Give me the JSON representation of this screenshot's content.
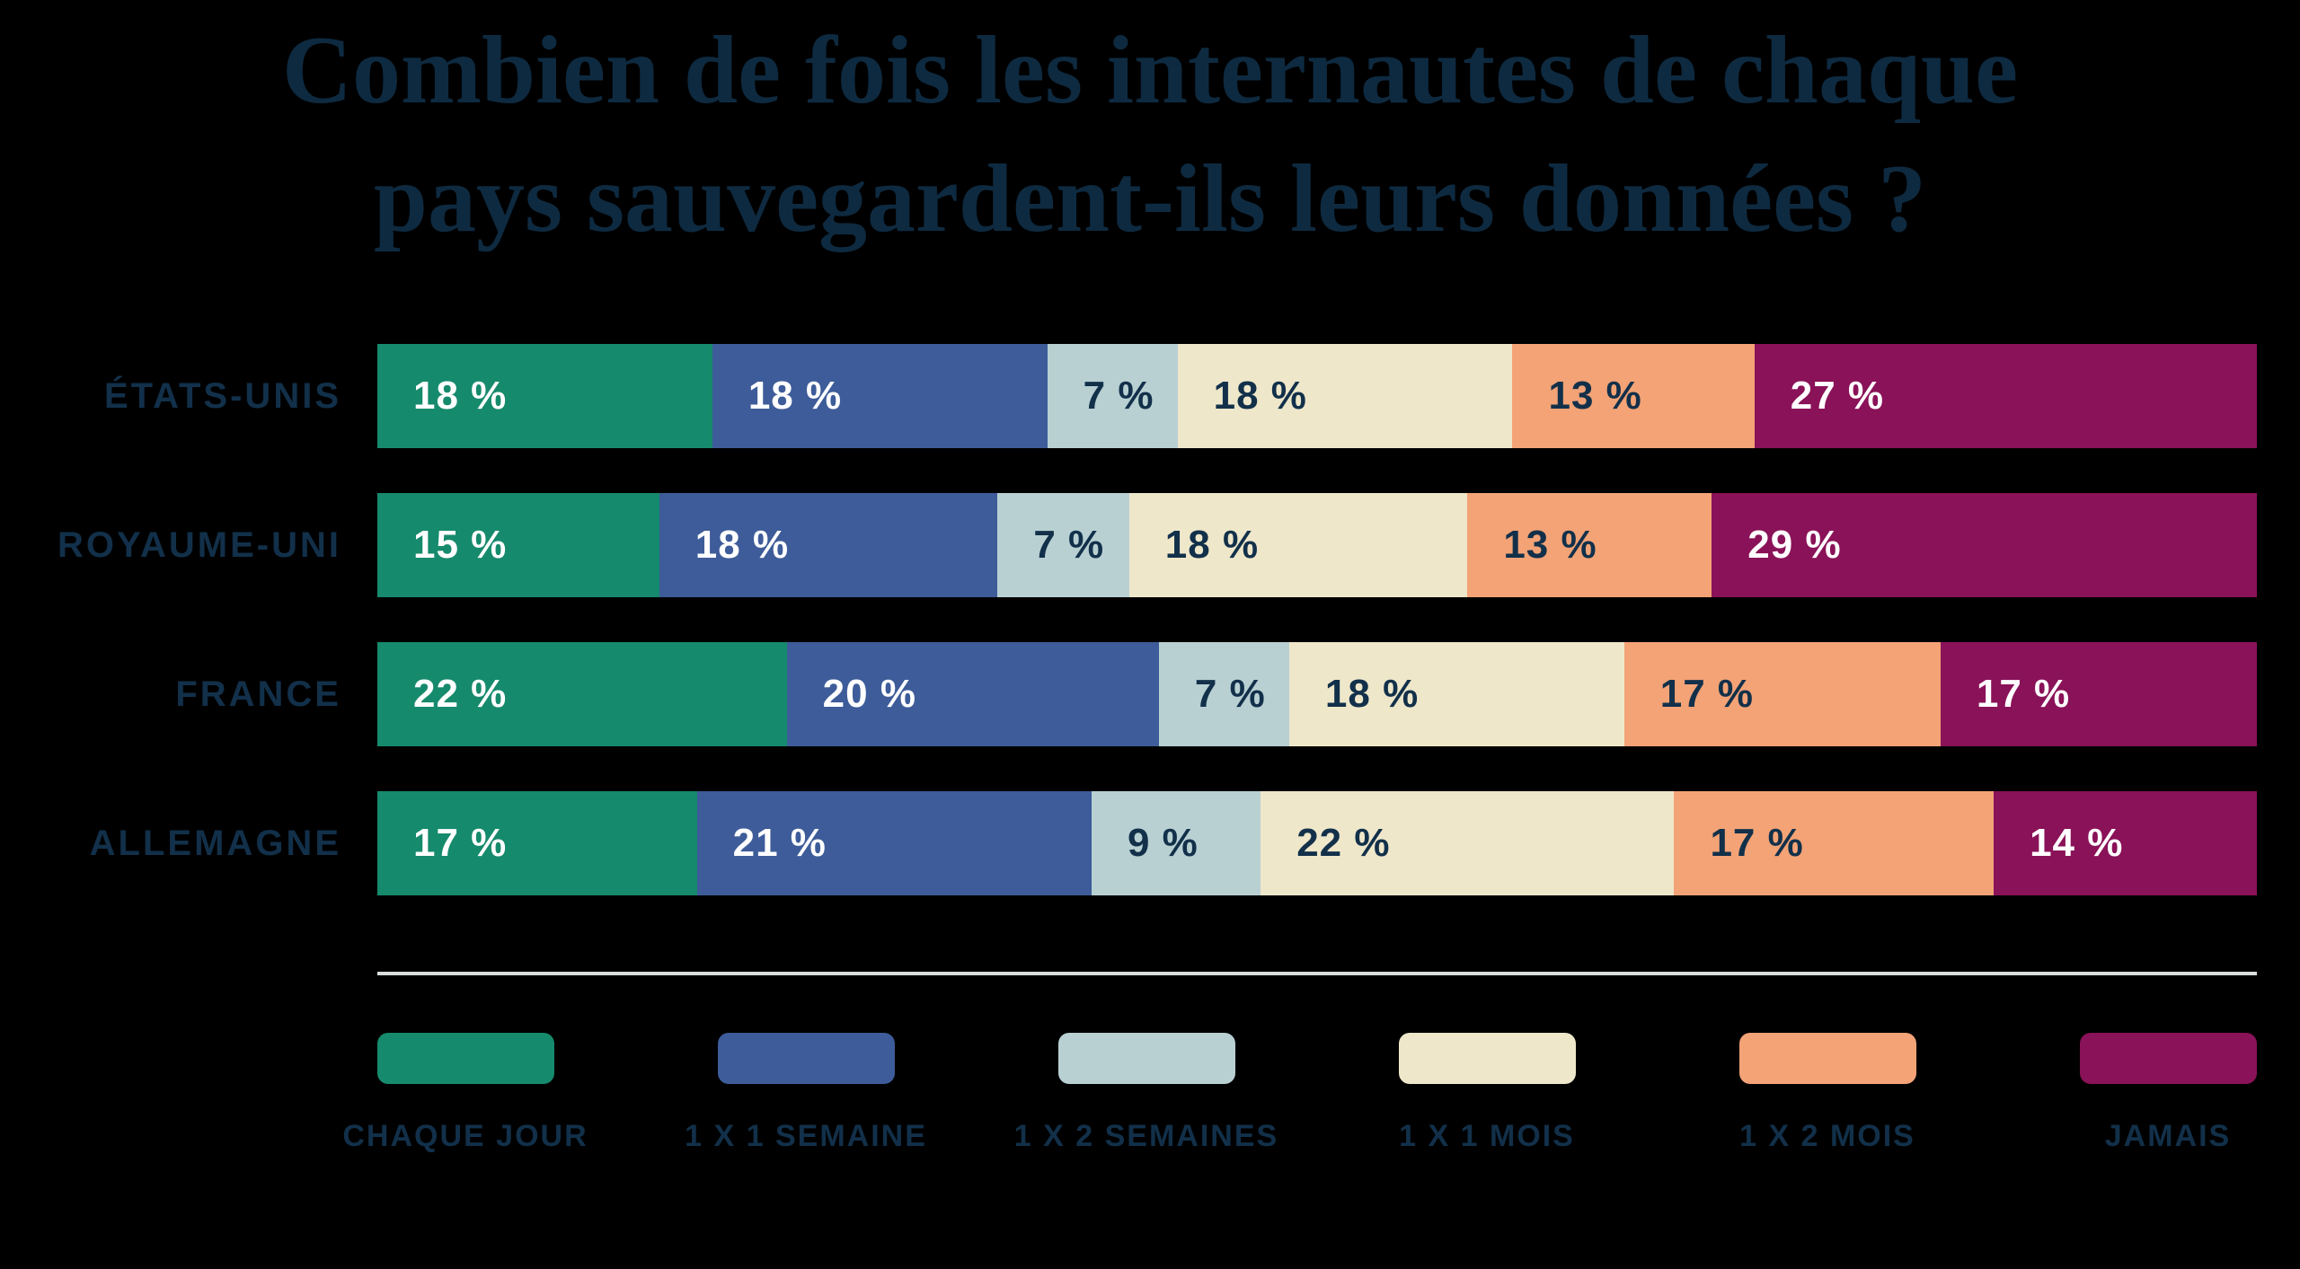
{
  "title": {
    "line1": "Combien de fois les internautes de chaque",
    "line2": "pays sauvegardent-ils leurs données ?"
  },
  "chart_data": {
    "type": "bar",
    "stacked": true,
    "orientation": "horizontal",
    "title": "Combien de fois les internautes de chaque pays sauvegardent-ils leurs données ?",
    "categories": [
      "ÉTATS-UNIS",
      "ROYAUME-UNI",
      "FRANCE",
      "ALLEMAGNE"
    ],
    "series": [
      {
        "name": "CHAQUE JOUR",
        "color": "#168A6C",
        "label_color": "#FFFFFF",
        "values": [
          18,
          15,
          22,
          17
        ]
      },
      {
        "name": "1 X 1 SEMAINE",
        "color": "#3D5C99",
        "label_color": "#FFFFFF",
        "values": [
          18,
          18,
          20,
          21
        ]
      },
      {
        "name": "1 X 2 SEMAINES",
        "color": "#B9D0D3",
        "label_color": "#12304A",
        "values": [
          7,
          7,
          7,
          9
        ]
      },
      {
        "name": "1 X 1 MOIS",
        "color": "#EEE7CA",
        "label_color": "#12304A",
        "values": [
          18,
          18,
          18,
          22
        ]
      },
      {
        "name": "1 X 2 MOIS",
        "color": "#F3A376",
        "label_color": "#12304A",
        "values": [
          13,
          13,
          17,
          17
        ]
      },
      {
        "name": "JAMAIS",
        "color": "#8A1258",
        "label_color": "#FFFFFF",
        "values": [
          27,
          29,
          17,
          14
        ]
      }
    ],
    "value_label_format": "{v} %",
    "value_labels_shown": true,
    "axis_shown": false,
    "grid": false,
    "legend_position": "bottom",
    "segment_width_rule": "value divided by row total"
  },
  "colors": {
    "background": "#000000",
    "title_text": "#0E2A40",
    "label_text": "#12304A",
    "separator": "#D9DDDC"
  }
}
